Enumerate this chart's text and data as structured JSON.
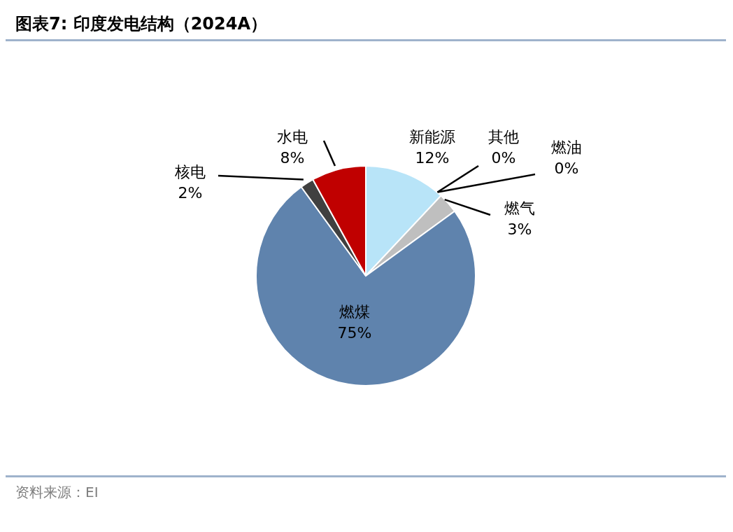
{
  "chart_data": {
    "type": "pie",
    "title": "图表7:  印度发电结构（2024A）",
    "categories": [
      "新能源",
      "其他",
      "燃油",
      "燃气",
      "燃煤",
      "核电",
      "水电"
    ],
    "values": [
      12,
      0,
      0,
      3,
      75,
      2,
      8
    ],
    "value_labels": [
      "12%",
      "0%",
      "0%",
      "3%",
      "75%",
      "2%",
      "8%"
    ],
    "colors": [
      "#b8e4f8",
      "#9dc3e6",
      "#7f7f7f",
      "#bfbfbf",
      "#5f83ad",
      "#404040",
      "#c00000"
    ],
    "legend": false,
    "annotations": [
      "资料来源：EI"
    ]
  }
}
